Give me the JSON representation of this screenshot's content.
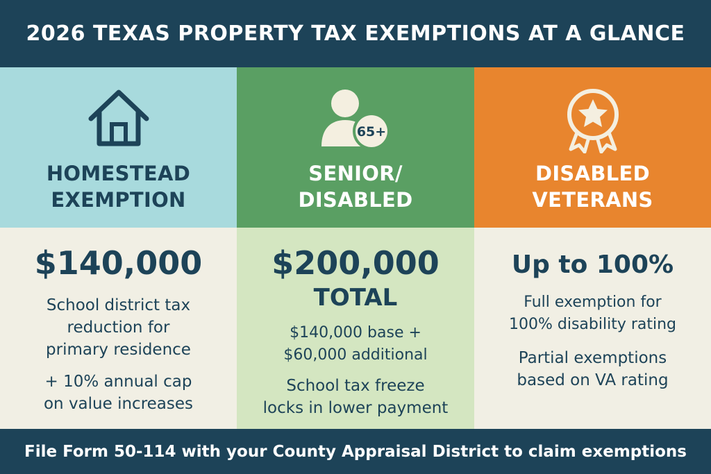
{
  "header": {
    "title": "2026 TEXAS PROPERTY TAX EXEMPTIONS AT A GLANCE"
  },
  "colors": {
    "navy": "#1d4358",
    "homestead_top": "#a8dadd",
    "senior_top": "#5a9f63",
    "veterans_top": "#e8852e",
    "cream": "#f1efe4",
    "senior_bottom": "#d4e6c1"
  },
  "columns": [
    {
      "icon": "house-icon",
      "title_lines": [
        "HOMESTEAD",
        "EXEMPTION"
      ],
      "amount": "$140,000",
      "desc_a_lines": [
        "School district tax",
        "reduction for",
        "primary residence"
      ],
      "desc_b_lines": [
        "+ 10% annual cap",
        "on value increases"
      ]
    },
    {
      "icon": "person-65-plus-icon",
      "icon_badge": "65+",
      "title_lines": [
        "SENIOR/",
        "DISABLED"
      ],
      "amount": "$200,000",
      "amount_suffix": "TOTAL",
      "desc_a_lines": [
        "$140,000 base +",
        "$60,000 additional"
      ],
      "desc_b_lines": [
        "School tax freeze",
        "locks in lower payment"
      ]
    },
    {
      "icon": "star-medal-icon",
      "title_lines": [
        "DISABLED",
        "VETERANS"
      ],
      "amount": "Up to 100%",
      "desc_a_lines": [
        "Full exemption for",
        "100% disability rating"
      ],
      "desc_b_lines": [
        "Partial exemptions",
        "based on VA rating"
      ]
    }
  ],
  "footer": {
    "text": "File Form 50-114 with your County Appraisal District to claim exemptions"
  }
}
